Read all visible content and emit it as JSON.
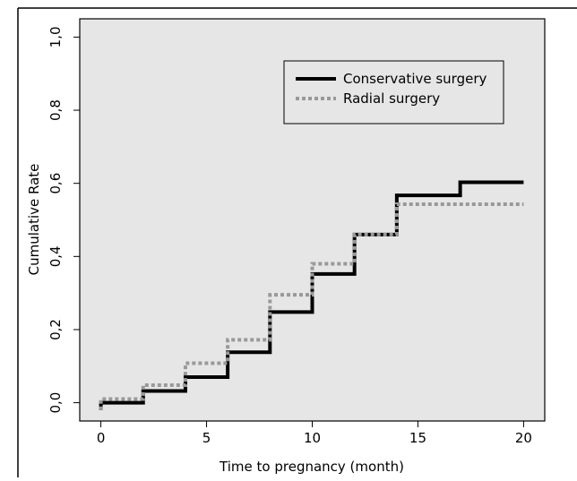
{
  "chart_data": {
    "type": "line",
    "xlabel": "Time to pregnancy (month)",
    "ylabel": "Cumulative Rate",
    "xlim": [
      -1,
      21
    ],
    "ylim": [
      -0.05,
      1.05
    ],
    "x_ticks": [
      0,
      5,
      10,
      15,
      20
    ],
    "x_tick_labels": [
      "0",
      "5",
      "10",
      "15",
      "20"
    ],
    "y_ticks": [
      0.0,
      0.2,
      0.4,
      0.6,
      0.8,
      1.0
    ],
    "y_tick_labels": [
      "0,0",
      "0,2",
      "0,4",
      "0,6",
      "0,8",
      "1,0"
    ],
    "grid": false,
    "legend_position": "top-right",
    "series": [
      {
        "name": "Conservative surgery",
        "style": "solid",
        "color": "#000000",
        "x": [
          0,
          2,
          4,
          6,
          8,
          10,
          12,
          14,
          17,
          20
        ],
        "y": [
          0.0,
          0.032,
          0.07,
          0.138,
          0.248,
          0.352,
          0.46,
          0.567,
          0.603,
          0.603
        ]
      },
      {
        "name": "Radial surgery",
        "style": "dotted",
        "color": "#999999",
        "x": [
          0,
          2,
          4,
          6,
          8,
          10,
          12,
          14,
          20
        ],
        "y": [
          0.01,
          0.048,
          0.108,
          0.172,
          0.295,
          0.38,
          0.46,
          0.543,
          0.543
        ]
      }
    ]
  },
  "colors": {
    "plot_background": "#e6e6e6",
    "frame": "#000000",
    "conservative": "#000000",
    "radial": "#999999"
  }
}
